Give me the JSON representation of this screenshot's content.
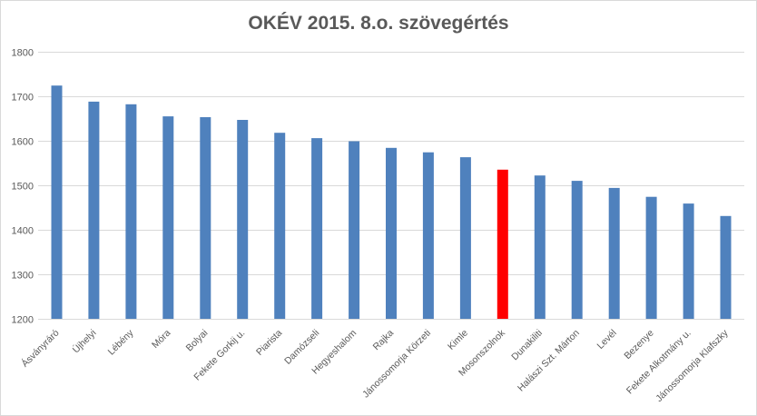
{
  "chart_data": {
    "type": "bar",
    "title": "OKÉV 2015. 8.o. szövegértés",
    "xlabel": "",
    "ylabel": "",
    "ylim": [
      1200,
      1800
    ],
    "yticks": [
      1200,
      1300,
      1400,
      1500,
      1600,
      1700,
      1800
    ],
    "grid": true,
    "legend": "none",
    "categories": [
      "Ásványráró",
      "Újhelyi",
      "Lébény",
      "Móra",
      "Bolyai",
      "Fekete Gorkij u.",
      "Piarista",
      "Damózseli",
      "Hegyeshalom",
      "Rajka",
      "Jánossomorja Körzeti",
      "Kimle",
      "Mosonszolnok",
      "Dunakiliti",
      "Halászi Szt. Márton",
      "Levél",
      "Bezenye",
      "Fekete Alkotmány u.",
      "Jánossomorja Klafszky"
    ],
    "values": [
      1724,
      1688,
      1682,
      1655,
      1653,
      1647,
      1618,
      1606,
      1599,
      1584,
      1574,
      1563,
      1535,
      1522,
      1510,
      1494,
      1474,
      1459,
      1431
    ],
    "colors": {
      "bar": "#4f81bd",
      "highlight": "#ff0000",
      "grid": "#d9d9d9",
      "text": "#595959"
    },
    "highlight_category": "Mosonszolnok"
  }
}
